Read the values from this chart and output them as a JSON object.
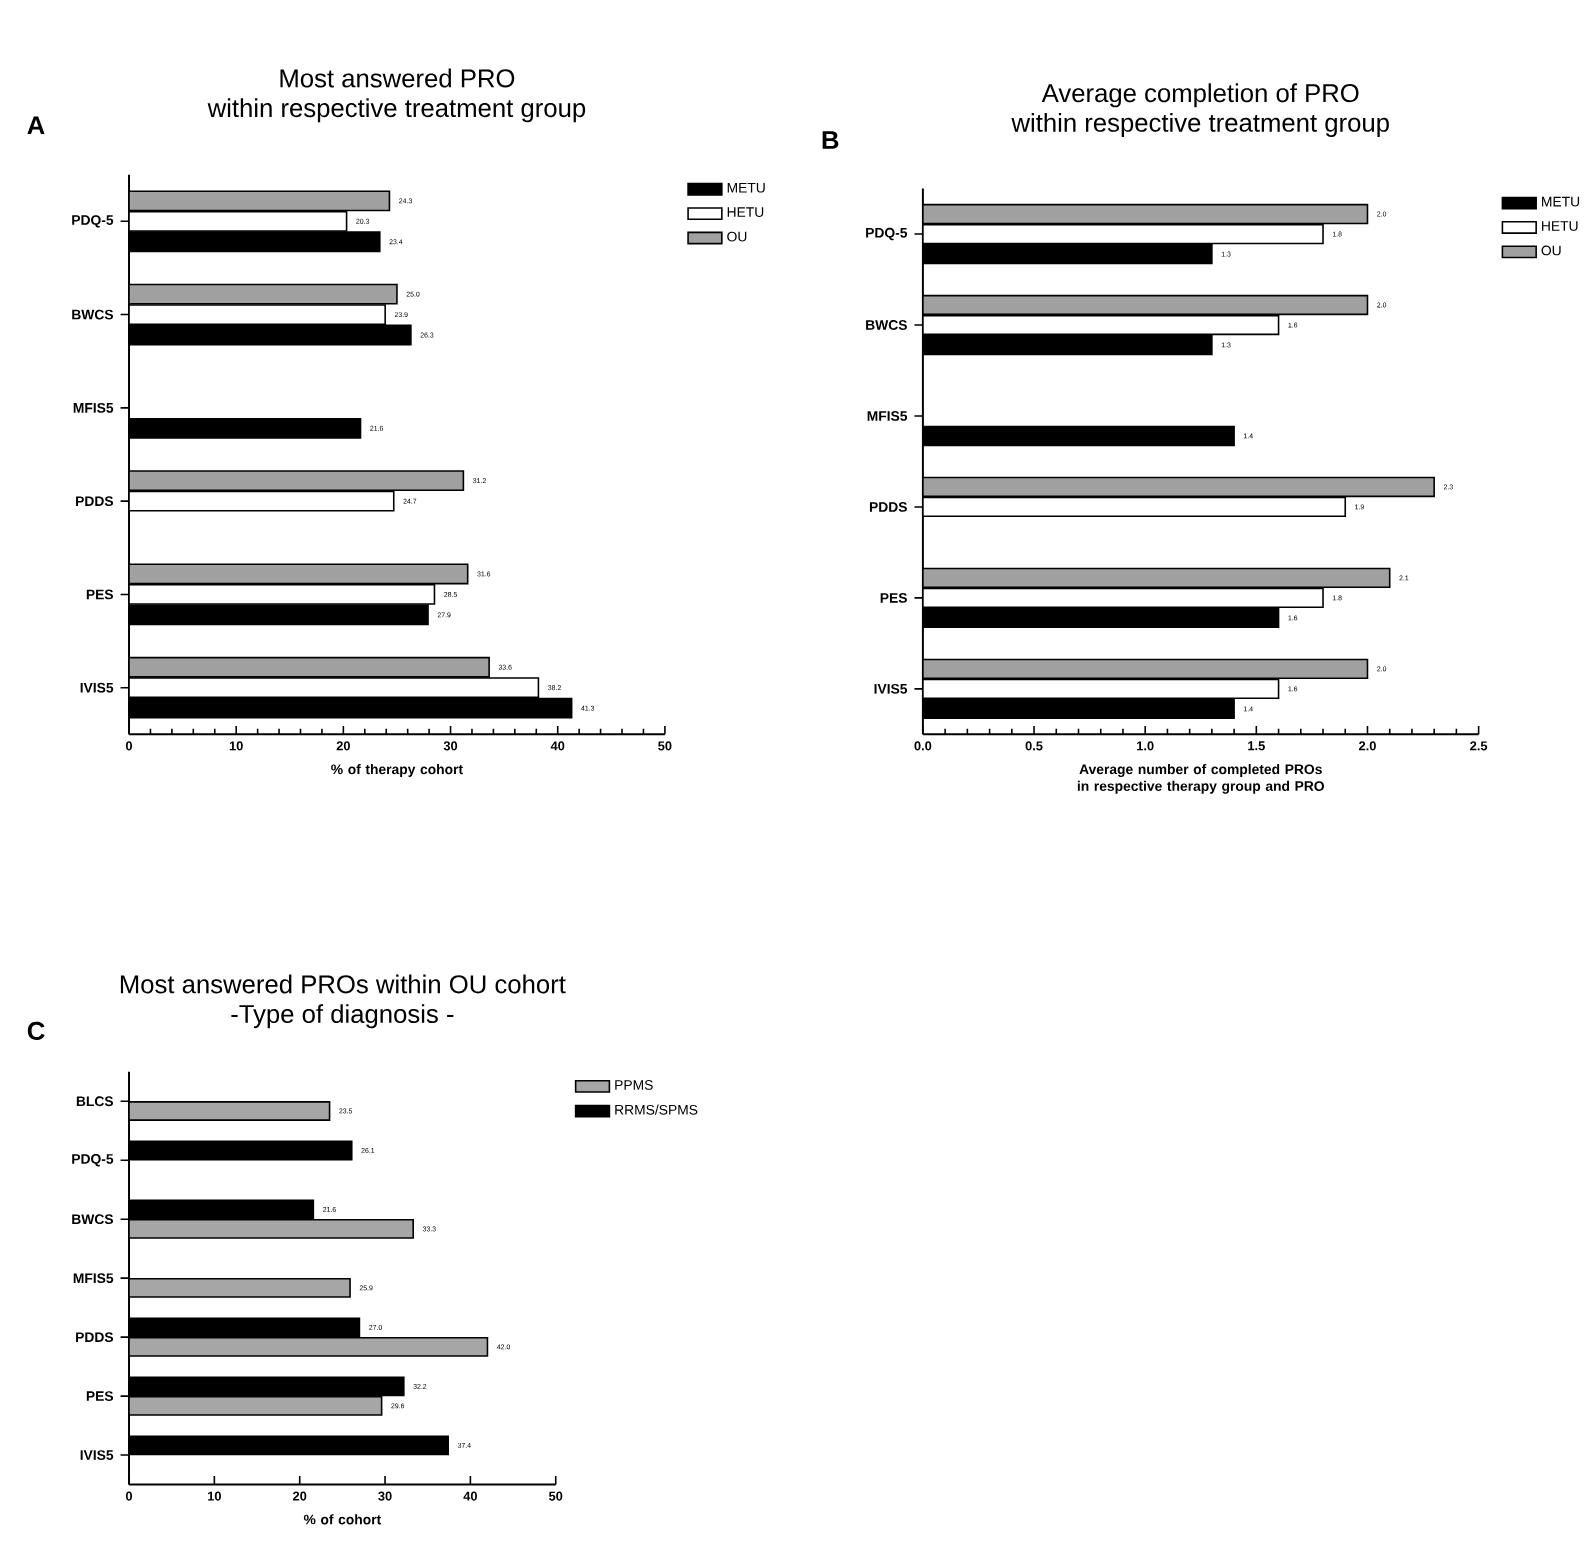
{
  "chart_data": [
    {
      "type": "bar",
      "orientation": "horizontal",
      "title": "Most answered PRO",
      "subtitle": "within respective treatment group",
      "annotations": [
        "A"
      ],
      "xlabel": "% of  therapy cohort",
      "categories": [
        "PDQ-5",
        "BWCS",
        "MFIS5",
        "PDDS",
        "PES",
        "IVIS5"
      ],
      "series": [
        {
          "name": "METU",
          "color": "#000000",
          "values": [
            23.4,
            26.3,
            21.6,
            null,
            27.9,
            41.3
          ],
          "value_labels": [
            "23.4",
            "26.3",
            "21.6",
            null,
            "27.9",
            "41.3"
          ]
        },
        {
          "name": "HETU",
          "color": "#ffffff",
          "values": [
            20.3,
            23.9,
            null,
            24.7,
            28.5,
            38.2
          ],
          "value_labels": [
            "20.3",
            "23.9",
            null,
            "24.7",
            "28.5",
            "38.2"
          ]
        },
        {
          "name": "OU",
          "color": "#a0a0a0",
          "values": [
            24.3,
            25.0,
            null,
            31.2,
            31.6,
            33.6
          ],
          "value_labels": [
            "24.3",
            "25.0",
            null,
            "31.2",
            "31.6",
            "33.6"
          ]
        }
      ],
      "xlim": [
        0,
        50
      ],
      "xticks": [
        0,
        10,
        20,
        30,
        40,
        50
      ],
      "legend": "top right"
    },
    {
      "type": "bar",
      "orientation": "horizontal",
      "title": "Average completion of PRO",
      "subtitle": "within respective treatment group",
      "annotations": [
        "B"
      ],
      "xlabel": "Average number of completed PROs in respective therapy group and PRO",
      "categories": [
        "PDQ-5",
        "BWCS",
        "MFIS5",
        "PDDS",
        "PES",
        "IVIS5"
      ],
      "series": [
        {
          "name": "METU",
          "color": "#000000",
          "values": [
            1.3,
            1.3,
            1.4,
            null,
            1.6,
            1.4
          ],
          "value_labels": [
            "1.3",
            "1.3",
            "1.4",
            null,
            "1.6",
            "1.4"
          ]
        },
        {
          "name": "HETU",
          "color": "#ffffff",
          "values": [
            1.8,
            1.6,
            null,
            1.9,
            1.8,
            1.6
          ],
          "value_labels": [
            "1.8",
            "1.6",
            null,
            "1.9",
            "1.8",
            "1.6"
          ]
        },
        {
          "name": "OU",
          "color": "#a0a0a0",
          "values": [
            2.0,
            2.0,
            null,
            2.3,
            2.1,
            2.0
          ],
          "value_labels": [
            "2.0",
            "2.0",
            null,
            "2.3",
            "2.1",
            "2.0"
          ]
        }
      ],
      "xlim": [
        0,
        2.5
      ],
      "xticks": [
        {
          "value": 0,
          "label": "0.0"
        },
        0.5,
        {
          "value": 1,
          "label": "1.0"
        },
        1.5,
        {
          "value": 2,
          "label": "2.0"
        },
        2.5
      ],
      "legend": "top right"
    },
    {
      "type": "bar",
      "orientation": "horizontal",
      "title": "Most answered PROs within OU cohort",
      "subtitle": "-Type of diagnosis -",
      "annotations": [
        "C"
      ],
      "xlabel": "% of cohort",
      "categories": [
        "BLCS",
        "PDQ-5",
        "BWCS",
        "MFIS5",
        "PDDS",
        "PES",
        "IVIS5"
      ],
      "series": [
        {
          "name": "PPMS",
          "color": "#a6a6a6",
          "values": [
            23.5,
            null,
            33.3,
            25.9,
            42.0,
            29.6,
            null
          ],
          "value_labels": [
            "23.5",
            null,
            "33.3",
            "25.9",
            "42.0",
            "29.6",
            null
          ]
        },
        {
          "name": "RRMS/SPMS",
          "color": "#000000",
          "values": [
            null,
            26.1,
            21.6,
            null,
            27.0,
            32.2,
            37.4
          ],
          "value_labels": [
            null,
            "26.1",
            "21.6",
            null,
            "27.0",
            "32.2",
            "37.4"
          ]
        }
      ],
      "xlim": [
        0,
        50
      ],
      "xticks": [
        0,
        10,
        20,
        30,
        40,
        50
      ],
      "legend": "top right"
    }
  ]
}
